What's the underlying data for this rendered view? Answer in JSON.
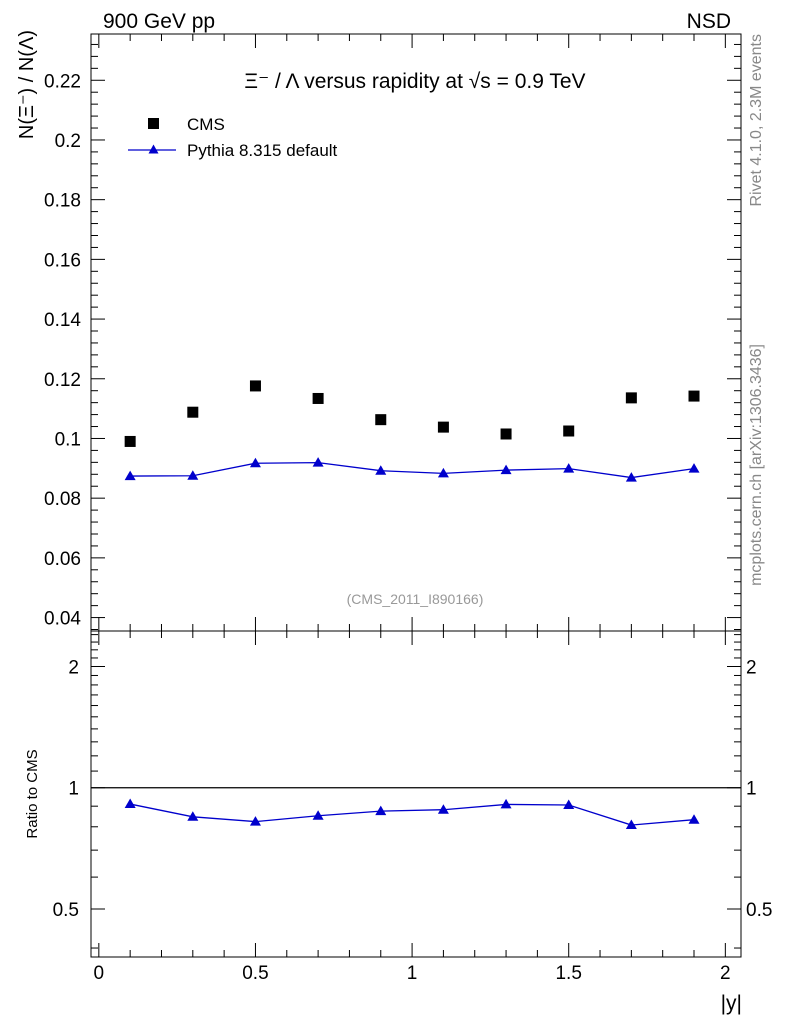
{
  "header": {
    "left": "900 GeV pp",
    "right": "NSD"
  },
  "side_labels": {
    "rivet": "Rivet 4.1.0,  2.3M events",
    "mcplots": "mcplots.cern.ch [arXiv:1306.3436]"
  },
  "colors": {
    "cms": "#000000",
    "pythia": "#0000cc",
    "ref_line": "#000000",
    "watermark": "#999999"
  },
  "chart_data": [
    {
      "panel": "main",
      "type": "scatter",
      "title": "Ξ⁻ / Λ versus rapidity at √s = 0.9 TeV",
      "xlabel": "|y|",
      "ylabel": "N(Ξ⁻) / N(Λ)",
      "xlim": [
        -0.025,
        2.05
      ],
      "ylim": [
        0.0355,
        0.2355
      ],
      "yticks": [
        0.04,
        0.06,
        0.08,
        0.1,
        0.12,
        0.14,
        0.16,
        0.18,
        0.2,
        0.22
      ],
      "ytick_labels": [
        "0.04",
        "0.06",
        "0.08",
        "0.1",
        "0.12",
        "0.14",
        "0.16",
        "0.18",
        "0.2",
        "0.22"
      ],
      "watermark": "(CMS_2011_I890166)",
      "legend_position": "top-left",
      "x": [
        0.1,
        0.3,
        0.5,
        0.7,
        0.9,
        1.1,
        1.3,
        1.5,
        1.7,
        1.9
      ],
      "series": [
        {
          "name": "CMS",
          "style": "markers-square",
          "values": [
            0.099,
            0.1088,
            0.1176,
            0.1134,
            0.1063,
            0.1038,
            0.1015,
            0.1025,
            0.1136,
            0.1142
          ]
        },
        {
          "name": "Pythia 8.315 default",
          "style": "line-triangle",
          "values": [
            0.0874,
            0.0875,
            0.0917,
            0.0919,
            0.0892,
            0.0883,
            0.0894,
            0.0899,
            0.0869,
            0.0899
          ]
        }
      ]
    },
    {
      "panel": "ratio",
      "type": "line",
      "xlabel": "|y|",
      "ylabel": "Ratio to CMS",
      "xlim": [
        -0.025,
        2.05
      ],
      "ylim": [
        0.38,
        2.45
      ],
      "yscale": "log",
      "yticks": [
        0.5,
        1,
        2
      ],
      "ytick_labels": [
        "0.5",
        "1",
        "2"
      ],
      "xticks": [
        0,
        0.5,
        1,
        1.5,
        2
      ],
      "xtick_labels": [
        "0",
        "0.5",
        "1",
        "1.5",
        "2"
      ],
      "reference_line": 1,
      "x": [
        0.1,
        0.3,
        0.5,
        0.7,
        0.9,
        1.1,
        1.3,
        1.5,
        1.7,
        1.9
      ],
      "series": [
        {
          "name": "Pythia 8.315 default",
          "values": [
            0.911,
            0.847,
            0.824,
            0.852,
            0.875,
            0.882,
            0.909,
            0.906,
            0.808,
            0.833
          ]
        }
      ]
    }
  ]
}
